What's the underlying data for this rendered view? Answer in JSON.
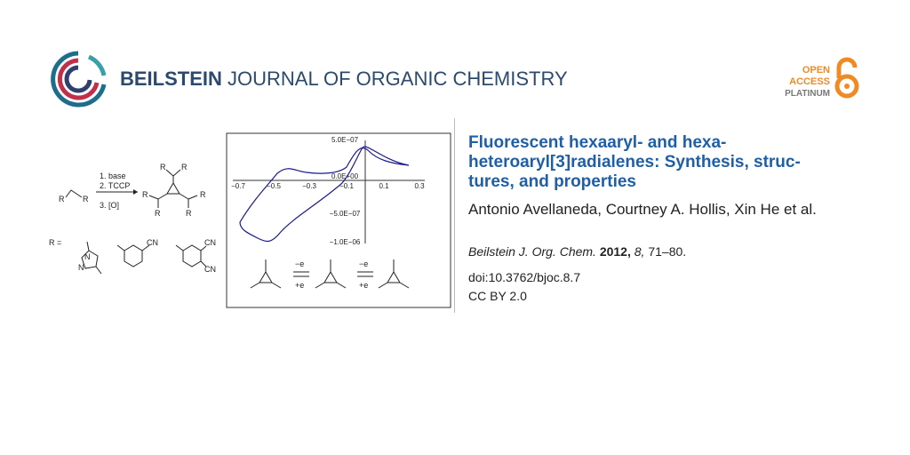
{
  "header": {
    "journal_bold": "BEILSTEIN",
    "journal_rest": "JOURNAL OF ORGANIC CHEMISTRY",
    "badge": [
      "OPEN",
      "ACCESS",
      "PLATINUM"
    ]
  },
  "article": {
    "title_lines": [
      "Fluorescent hexaaryl- and hexa-",
      "heteroaryl[3]radialenes: Synthesis, struc-",
      "tures, and properties"
    ],
    "authors": "Antonio Avellaneda, Courtney A. Hollis, Xin He et al.",
    "citation": {
      "journal": "Beilstein J. Org. Chem.",
      "year": "2012,",
      "volume": "8,",
      "pages": "71–80."
    },
    "doi": "doi:10.3762/bjoc.8.7",
    "license": "CC BY 2.0"
  },
  "graphic": {
    "reaction": {
      "steps": [
        "1. base",
        "2. TCCP",
        "3. [O]"
      ],
      "r": "R",
      "r_equals": "R =",
      "n": "N",
      "cn": "CN"
    },
    "cv_plot": {
      "x_labels": [
        "−0.7",
        "−0.5",
        "−0.3",
        "−0.1",
        "0.1",
        "0.3"
      ],
      "y_labels": [
        "5.0E−07",
        "0.0E+00",
        "−5.0E−07",
        "−1.0E−06"
      ]
    },
    "redox": {
      "minus": "−e",
      "plus": "+e"
    }
  }
}
